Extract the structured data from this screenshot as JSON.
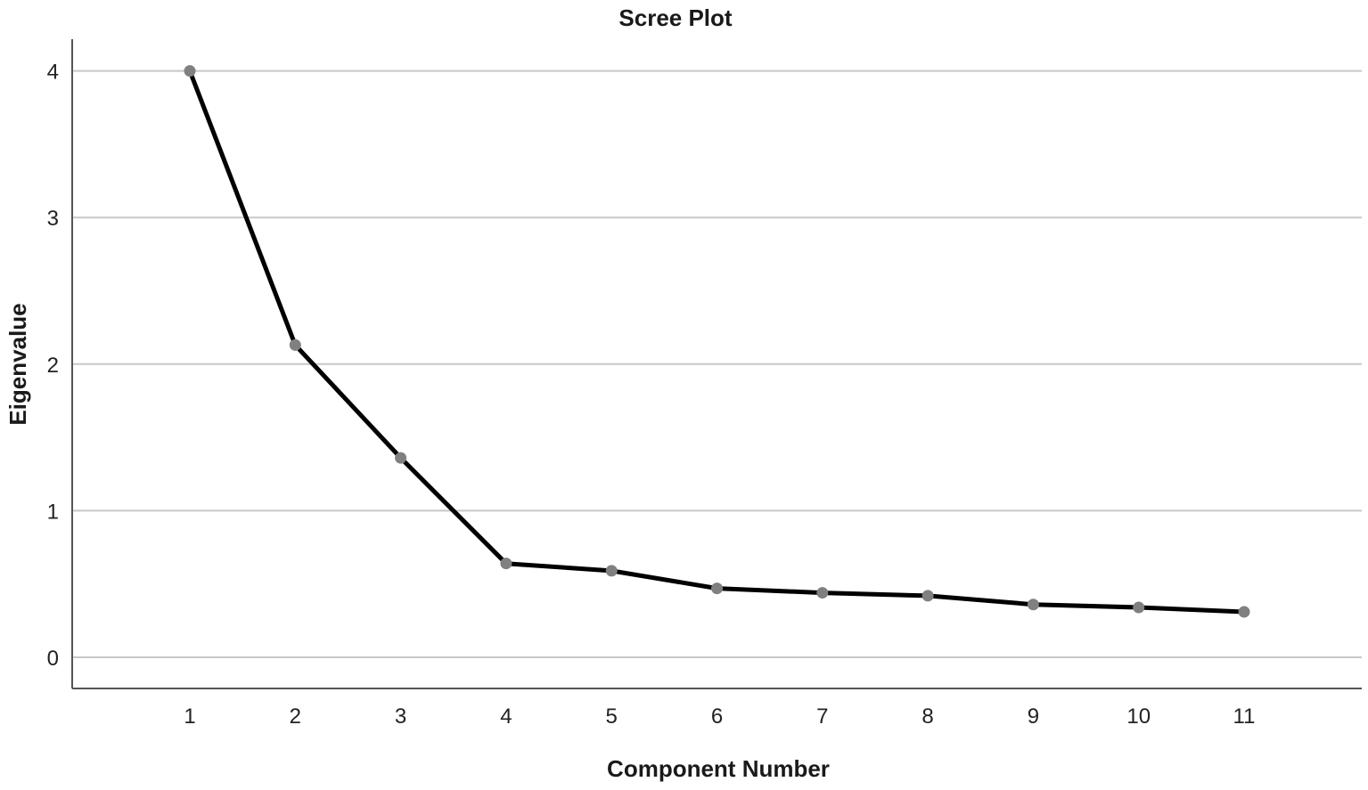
{
  "chart_data": {
    "type": "line",
    "title": "Scree Plot",
    "xlabel": "Component Number",
    "ylabel": "Eigenvalue",
    "x": [
      1,
      2,
      3,
      4,
      5,
      6,
      7,
      8,
      9,
      10,
      11
    ],
    "series": [
      {
        "values": [
          4.0,
          2.13,
          1.36,
          0.64,
          0.59,
          0.47,
          0.44,
          0.42,
          0.36,
          0.34,
          0.31
        ]
      }
    ],
    "xlim": [
      0,
      12.1
    ],
    "ylim": [
      -0.22,
      4.22
    ],
    "yticks": [
      0,
      1,
      2,
      3,
      4
    ],
    "xticks": [
      "1",
      "2",
      "3",
      "4",
      "5",
      "6",
      "7",
      "8",
      "9",
      "10",
      "11"
    ],
    "grid": "horizontal",
    "legend": "none",
    "colors": {
      "line": "#000000",
      "marker": "#808080",
      "grid": "#c8c8c8",
      "axis": "#555555"
    }
  }
}
